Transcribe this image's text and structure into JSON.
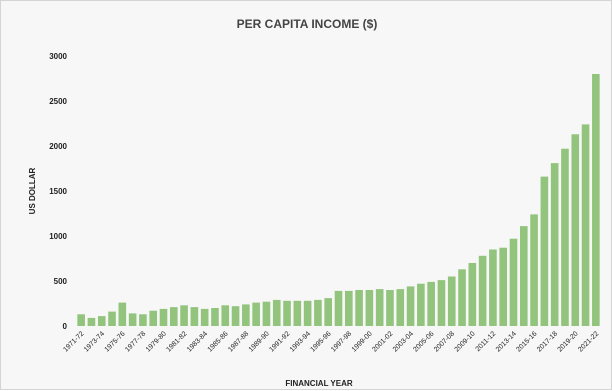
{
  "chart_data": {
    "type": "bar",
    "title": "PER CAPITA INCOME ($)",
    "xlabel": "FINANCIAL YEAR",
    "ylabel": "US DOLLAR",
    "ylim": [
      0,
      3000
    ],
    "yticks": [
      0,
      500,
      1000,
      1500,
      2000,
      2500,
      3000
    ],
    "grid": false,
    "bar_color": "#93c47d",
    "categories": [
      "1971-72",
      "1972-73",
      "1973-74",
      "1974-75",
      "1975-76",
      "1976-77",
      "1977-78",
      "1978-79",
      "1979-80",
      "1980-81",
      "1981-82",
      "1982-83",
      "1983-84",
      "1984-85",
      "1985-86",
      "1986-87",
      "1987-88",
      "1988-89",
      "1989-90",
      "1990-91",
      "1991-92",
      "1992-93",
      "1993-94",
      "1994-95",
      "1995-96",
      "1996-97",
      "1997-98",
      "1998-99",
      "1999-00",
      "2000-01",
      "2001-02",
      "2002-03",
      "2003-04",
      "2004-05",
      "2005-06",
      "2006-07",
      "2007-08",
      "2008-09",
      "2009-10",
      "2010-11",
      "2011-12",
      "2012-13",
      "2013-14",
      "2014-15",
      "2015-16",
      "2016-17",
      "2017-18",
      "2018-19",
      "2019-20",
      "2020-21",
      "2021-22"
    ],
    "tick_labels": [
      "1971-72",
      "1973-74",
      "1975-76",
      "1977-78",
      "1979-80",
      "1981-82",
      "1983-84",
      "1985-86",
      "1987-88",
      "1989-90",
      "1991-92",
      "1993-94",
      "1995-96",
      "1997-98",
      "1999-00",
      "2001-02",
      "2003-04",
      "2005-06",
      "2007-08",
      "2009-10",
      "2011-12",
      "2013-14",
      "2015-16",
      "2017-18",
      "2019-20",
      "2021-22"
    ],
    "values": [
      130,
      90,
      110,
      160,
      260,
      140,
      130,
      170,
      190,
      210,
      230,
      210,
      190,
      200,
      230,
      220,
      240,
      260,
      270,
      290,
      280,
      280,
      280,
      290,
      310,
      390,
      390,
      400,
      400,
      410,
      400,
      410,
      440,
      470,
      490,
      510,
      550,
      630,
      700,
      780,
      850,
      870,
      970,
      1110,
      1240,
      1660,
      1810,
      1970,
      2130,
      2240,
      2800
    ]
  }
}
